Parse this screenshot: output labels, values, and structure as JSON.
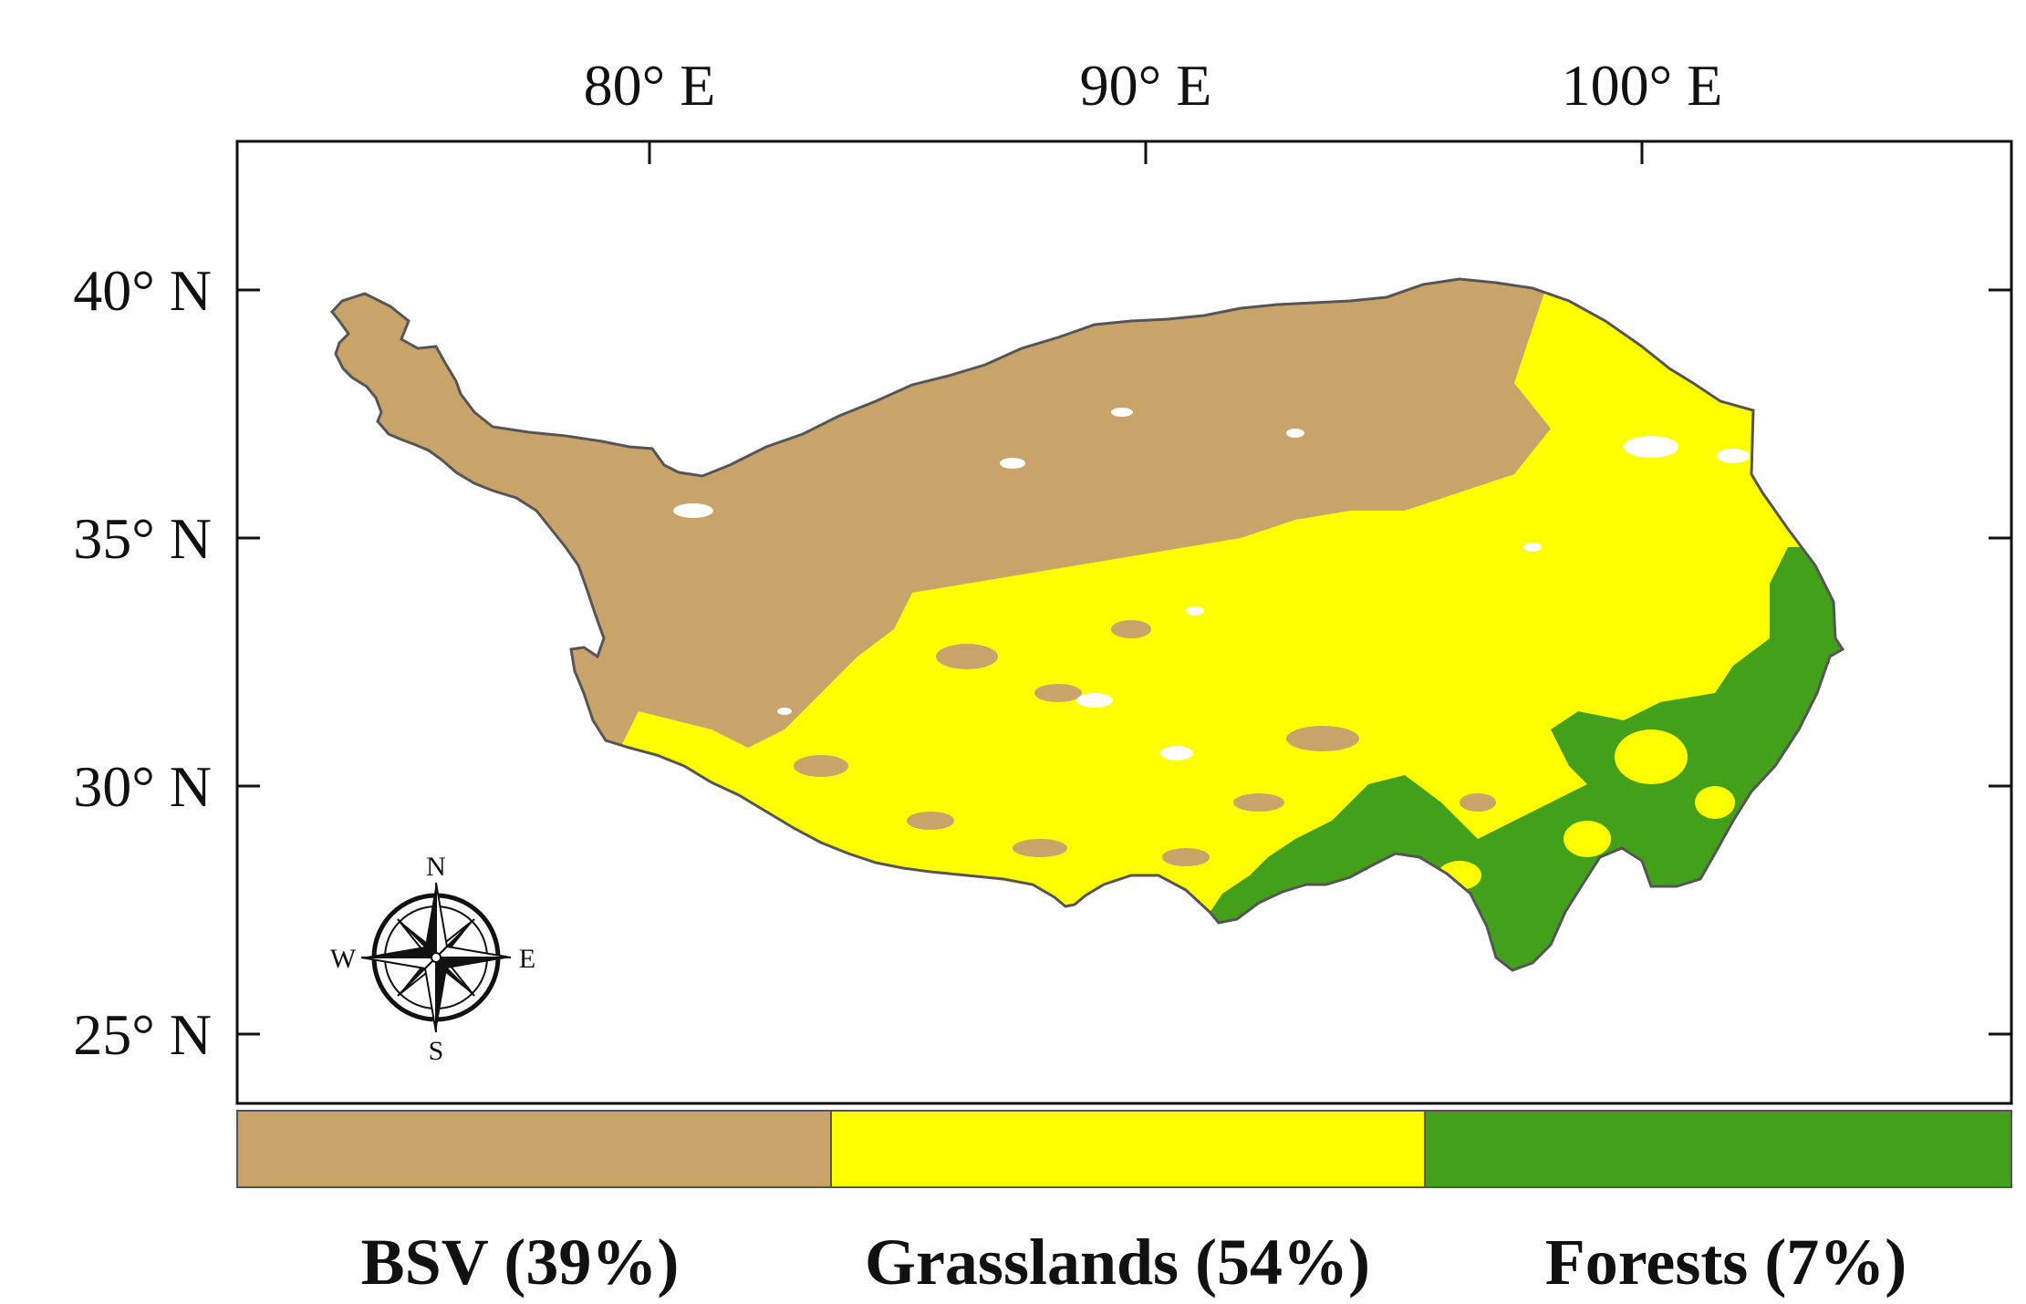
{
  "axes": {
    "top_labels": [
      "80° E",
      "90° E",
      "100° E"
    ],
    "left_labels": [
      "40° N",
      "35° N",
      "30° N",
      "25° N"
    ]
  },
  "compass": {
    "icon": "compass-rose-icon",
    "north": "N",
    "south": "S",
    "east": "E",
    "west": "W"
  },
  "legend": {
    "items": [
      {
        "label": "BSV (39%)",
        "color": "#C9A46A",
        "share": 39
      },
      {
        "label": "Grasslands (54%)",
        "color": "#FFFF00",
        "share": 54
      },
      {
        "label": "Forests (7%)",
        "color": "#43A01A",
        "share": 7
      }
    ]
  },
  "colors": {
    "bsv": "#C9A46A",
    "grasslands": "#FFFF00",
    "forests": "#43A01A",
    "nodata": "#FFFFFF",
    "outline": "#555555"
  }
}
